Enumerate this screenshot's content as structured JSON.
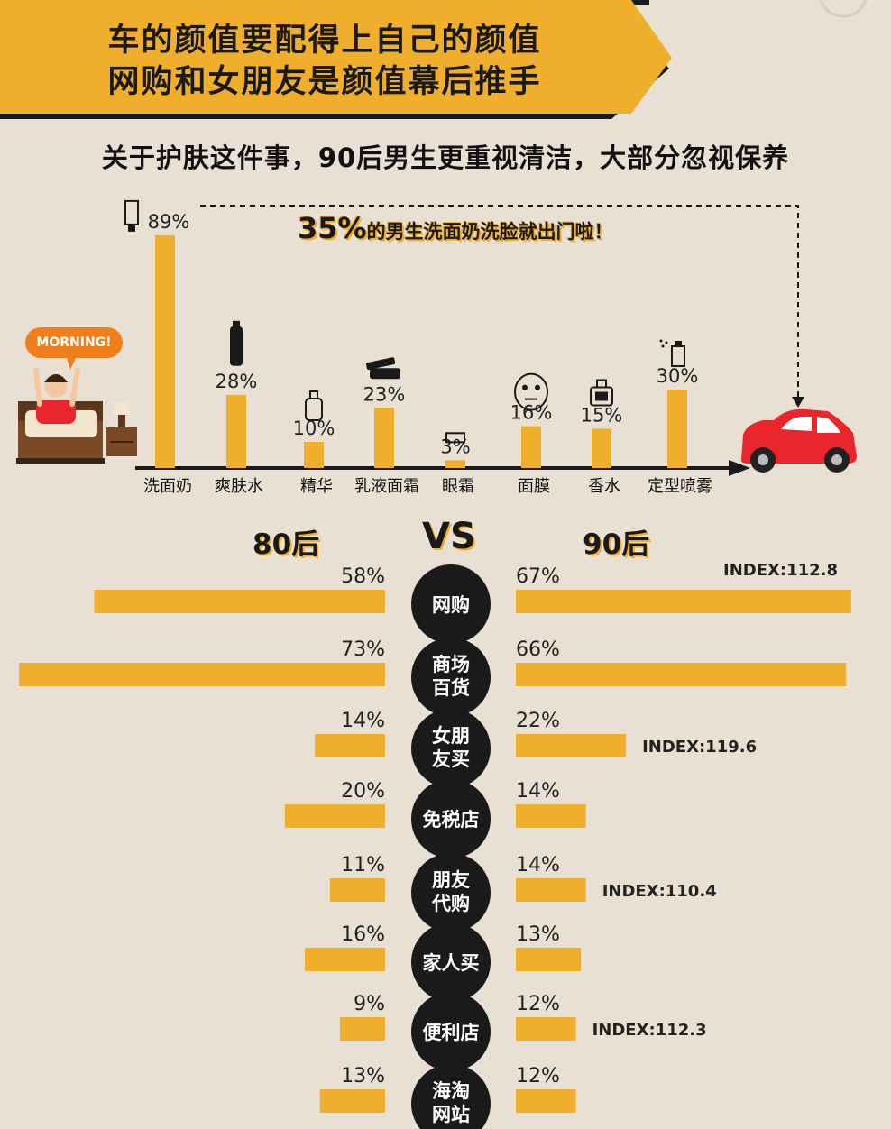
{
  "banner": {
    "title_line1": "车的颜值要配得上自己的颜值",
    "title_line2": "网购和女朋友是颜值幕后推手"
  },
  "subtitle": "关于护肤这件事，90后男生更重视清洁，大部分忽视保养",
  "callout": {
    "percent": "35%",
    "text": "的男生洗面奶洗脸就出门啦！"
  },
  "illustration": {
    "bubble": "MORNING!"
  },
  "colors": {
    "background": "#e8e0d2",
    "accent": "#f0ae2d",
    "dark": "#1a1a1a",
    "car": "#e8262c"
  },
  "chart_data": [
    {
      "type": "bar",
      "categories": [
        "洗面奶",
        "爽肤水",
        "精华",
        "乳液面霜",
        "眼霜",
        "面膜",
        "香水",
        "定型喷雾"
      ],
      "values": [
        89,
        28,
        10,
        23,
        3,
        16,
        15,
        30
      ],
      "value_labels": [
        "89%",
        "28%",
        "10%",
        "23%",
        "3%",
        "16%",
        "15%",
        "30%"
      ],
      "icons": [
        "tube-icon",
        "toner-bottle-icon",
        "serum-bottle-icon",
        "cream-jar-icon",
        "eye-cream-icon",
        "face-mask-icon",
        "perfume-icon",
        "spray-icon"
      ],
      "ylim": [
        0,
        100
      ]
    },
    {
      "type": "bar",
      "orientation": "horizontal-butterfly",
      "series_headers": {
        "left": "80后",
        "center": "VS",
        "right": "90后"
      },
      "categories": [
        "网购",
        "商场百货",
        "女朋友买",
        "免税店",
        "朋友代购",
        "家人买",
        "便利店",
        "海淘网站"
      ],
      "category_lines": [
        [
          "网购"
        ],
        [
          "商场",
          "百货"
        ],
        [
          "女朋",
          "友买"
        ],
        [
          "免税店"
        ],
        [
          "朋友",
          "代购"
        ],
        [
          "家人买"
        ],
        [
          "便利店"
        ],
        [
          "海淘",
          "网站"
        ]
      ],
      "series": [
        {
          "name": "80后",
          "values": [
            58,
            73,
            14,
            20,
            11,
            16,
            9,
            13
          ],
          "labels": [
            "58%",
            "73%",
            "14%",
            "20%",
            "11%",
            "16%",
            "9%",
            "13%"
          ]
        },
        {
          "name": "90后",
          "values": [
            67,
            66,
            22,
            14,
            14,
            13,
            12,
            12
          ],
          "labels": [
            "67%",
            "66%",
            "22%",
            "14%",
            "14%",
            "13%",
            "12%",
            "12%"
          ]
        }
      ],
      "index_notes": [
        "INDEX:112.8",
        "",
        "INDEX:119.6",
        "",
        "INDEX:110.4",
        "",
        "INDEX:112.3",
        ""
      ]
    }
  ]
}
